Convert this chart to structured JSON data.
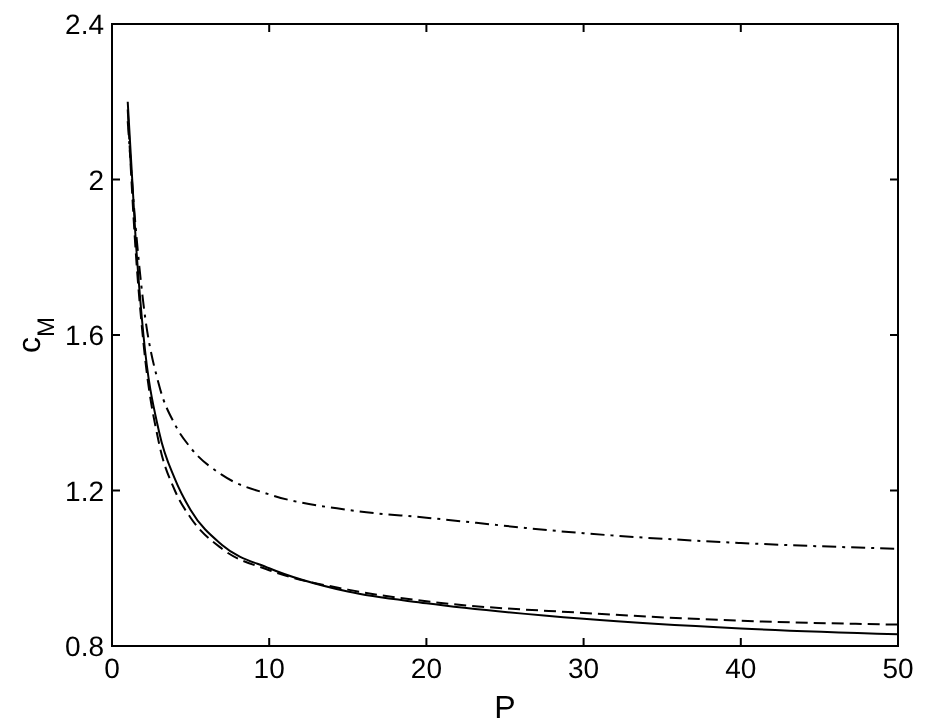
{
  "chart_data": {
    "type": "line",
    "xlabel": "P",
    "ylabel": "c$_{M}$",
    "x": [
      1,
      1.5,
      2,
      3,
      4,
      5,
      7,
      10,
      15,
      20,
      30,
      40,
      50
    ],
    "series": [
      {
        "color": "#000000",
        "line_style": "solid",
        "values": [
          2.2,
          1.85,
          1.6,
          1.35,
          1.23,
          1.15,
          1.06,
          1.0,
          0.94,
          0.91,
          0.87,
          0.845,
          0.83
        ]
      },
      {
        "color": "#000000",
        "line_style": "dashed",
        "values": [
          2.18,
          1.82,
          1.58,
          1.32,
          1.2,
          1.13,
          1.05,
          0.995,
          0.945,
          0.915,
          0.885,
          0.865,
          0.855
        ]
      },
      {
        "color": "#000000",
        "line_style": "dashdot",
        "values": [
          2.15,
          1.88,
          1.68,
          1.47,
          1.37,
          1.31,
          1.24,
          1.19,
          1.15,
          1.13,
          1.09,
          1.065,
          1.05
        ]
      }
    ],
    "xlim": [
      0,
      50
    ],
    "xticks": [
      0,
      10,
      20,
      30,
      40,
      50
    ],
    "ylim": [
      0.8,
      2.4
    ],
    "yticks": [
      0.8,
      1.2,
      1.6,
      2,
      2.4
    ],
    "grid": false
  }
}
